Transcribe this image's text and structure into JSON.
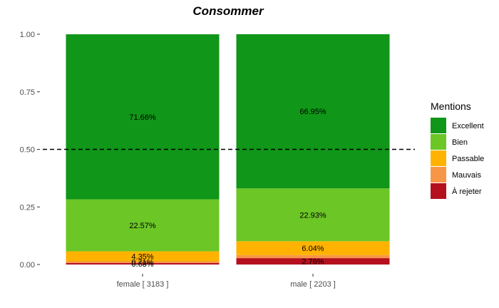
{
  "chart_data": {
    "type": "bar",
    "stacked": true,
    "title": "Consommer",
    "xlabel": "",
    "ylabel": "",
    "ylim": [
      0,
      1
    ],
    "yticks": [
      0,
      0.25,
      0.5,
      0.75,
      1
    ],
    "ytick_labels": [
      "0.00",
      "0.25",
      "0.50",
      "0.75",
      "1.00"
    ],
    "reference_line": 0.5,
    "categories": [
      "female [ 3183 ]",
      "male [ 2203 ]"
    ],
    "legend_title": "Mentions",
    "legend_position": "right",
    "series": [
      {
        "name": "À rejeter",
        "color": "#b5101e",
        "values": [
          0.0068,
          0.0276
        ],
        "labels": [
          "0.68%",
          "2.76%"
        ]
      },
      {
        "name": "Mauvais",
        "color": "#f79646",
        "values": [
          0.0071,
          0.0132
        ],
        "labels": [
          "0.71%",
          ""
        ]
      },
      {
        "name": "Passable",
        "color": "#ffb300",
        "values": [
          0.0435,
          0.0604
        ],
        "labels": [
          "4.35%",
          "6.04%"
        ]
      },
      {
        "name": "Bien",
        "color": "#6bc626",
        "values": [
          0.2257,
          0.2293
        ],
        "labels": [
          "22.57%",
          "22.93%"
        ]
      },
      {
        "name": "Excellent",
        "color": "#109618",
        "values": [
          0.7166,
          0.6695
        ],
        "labels": [
          "71.66%",
          "66.95%"
        ]
      }
    ],
    "legend_order": [
      "Excellent",
      "Bien",
      "Passable",
      "Mauvais",
      "À rejeter"
    ]
  }
}
